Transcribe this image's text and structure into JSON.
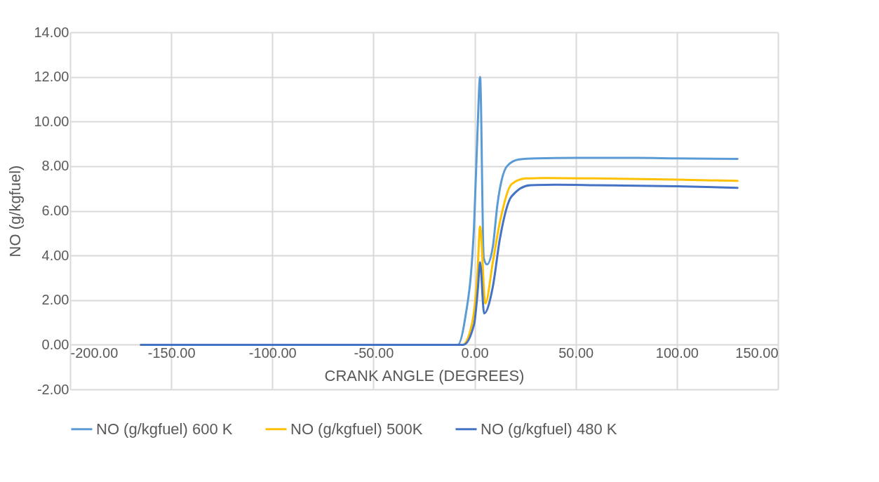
{
  "chart_data": {
    "type": "line",
    "xlabel": "CRANK ANGLE (DEGREES)",
    "ylabel": "NO (g/kgfuel)",
    "xlim": [
      -200,
      150
    ],
    "ylim": [
      -2,
      14
    ],
    "xticks": [
      {
        "value": -200,
        "label": "-200.00"
      },
      {
        "value": -150,
        "label": "-150.00"
      },
      {
        "value": -100,
        "label": "-100.00"
      },
      {
        "value": -50,
        "label": "-50.00"
      },
      {
        "value": 0,
        "label": "0.00"
      },
      {
        "value": 50,
        "label": "50.00"
      },
      {
        "value": 100,
        "label": "100.00"
      },
      {
        "value": 150,
        "label": "150.00"
      }
    ],
    "yticks": [
      {
        "value": -2,
        "label": "-2.00"
      },
      {
        "value": 0,
        "label": "0.00"
      },
      {
        "value": 2,
        "label": "2.00"
      },
      {
        "value": 4,
        "label": "4.00"
      },
      {
        "value": 6,
        "label": "6.00"
      },
      {
        "value": 8,
        "label": "8.00"
      },
      {
        "value": 10,
        "label": "10.00"
      },
      {
        "value": 12,
        "label": "12.00"
      },
      {
        "value": 14,
        "label": "14.00"
      }
    ],
    "grid": true,
    "legend": "bottom",
    "marker": "none",
    "line_style": "solid",
    "series": [
      {
        "name": "NO (g/kgfuel) 600 K",
        "color": "#5b9bd5",
        "x": [
          -165,
          -8.3,
          -4.9,
          -0.3,
          1.4,
          2.7,
          4.5,
          6.1,
          9,
          11.3,
          16,
          21.9,
          30,
          50,
          80,
          100,
          130
        ],
        "values": [
          0,
          0,
          1.07,
          5.3,
          9.5,
          12.0,
          3.9,
          3.6,
          4.4,
          6.3,
          8.0,
          8.3,
          8.35,
          8.37,
          8.37,
          8.35,
          8.33
        ]
      },
      {
        "name": "NO (g/kgfuel) 500K",
        "color": "#ffc000",
        "x": [
          -165,
          -6,
          -1.4,
          1.4,
          2.7,
          5.3,
          9,
          12.5,
          18.3,
          25.2,
          35,
          60,
          100,
          130
        ],
        "values": [
          0,
          0,
          0.9,
          3.2,
          5.3,
          1.85,
          3.7,
          5.5,
          7.2,
          7.45,
          7.47,
          7.45,
          7.4,
          7.34
        ]
      },
      {
        "name": "NO (g/kgfuel) 480 K",
        "color": "#4472c4",
        "x": [
          -165,
          -5.5,
          -0.3,
          1.7,
          2.7,
          4.7,
          9,
          12.5,
          18.3,
          27.5,
          40,
          60,
          100,
          130
        ],
        "values": [
          0,
          0,
          0.9,
          2.6,
          3.7,
          1.4,
          2.6,
          4.75,
          6.65,
          7.15,
          7.17,
          7.15,
          7.1,
          7.03
        ]
      }
    ]
  }
}
